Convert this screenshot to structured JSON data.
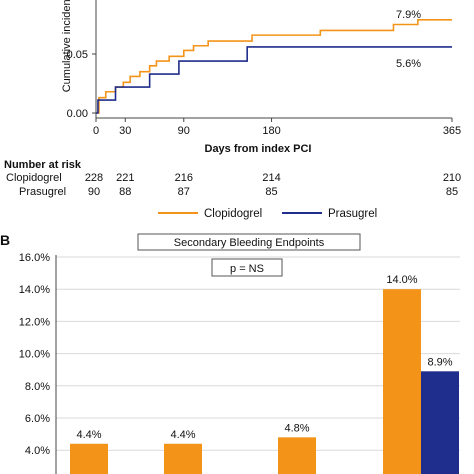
{
  "colors": {
    "clopidogrel": "#F39419",
    "prasugrel": "#1F2D8C"
  },
  "chart_data": [
    {
      "type": "line",
      "ylabel": "Cumulative incidence",
      "xlabel": "Days  from index PCI",
      "xlim": [
        0,
        365
      ],
      "ylim": [
        0,
        0.1
      ],
      "x_ticks": [
        0,
        30,
        90,
        180,
        365
      ],
      "y_ticks": [
        "0.00",
        "0.05"
      ],
      "series": [
        {
          "name": "Clopidogrel",
          "end_label": "7.9%",
          "x": [
            0,
            3,
            10,
            20,
            28,
            35,
            45,
            55,
            62,
            75,
            90,
            100,
            115,
            130,
            160,
            180,
            205,
            230,
            260,
            305,
            330,
            345,
            365
          ],
          "y": [
            0.0,
            0.013,
            0.018,
            0.022,
            0.026,
            0.031,
            0.035,
            0.04,
            0.044,
            0.048,
            0.053,
            0.057,
            0.061,
            0.061,
            0.066,
            0.066,
            0.066,
            0.07,
            0.07,
            0.075,
            0.079,
            0.079,
            0.079
          ]
        },
        {
          "name": "Prasugrel",
          "end_label": "5.6%",
          "x": [
            0,
            2,
            20,
            55,
            85,
            155,
            365
          ],
          "y": [
            0.0,
            0.011,
            0.022,
            0.033,
            0.044,
            0.056,
            0.056
          ]
        }
      ],
      "risk_table": {
        "title": "Number at risk",
        "rows": [
          {
            "label": "Clopidogrel",
            "values": [
              "228",
              "221",
              "216",
              "214",
              "210"
            ]
          },
          {
            "label": "Prasugrel",
            "values": [
              "90",
              "88",
              "87",
              "85",
              "85"
            ]
          }
        ]
      },
      "legend": [
        "Clopidogrel",
        "Prasugrel"
      ]
    },
    {
      "type": "bar",
      "panel_label": "B",
      "title": "Secondary Bleeding Endpoints",
      "annotation": "p = NS",
      "ylim": [
        3.0,
        16.0
      ],
      "y_ticks": [
        "4.0%",
        "6.0%",
        "8.0%",
        "10.0%",
        "12.0%",
        "14.0%",
        "16.0%"
      ],
      "bars": [
        {
          "series": "Clopidogrel",
          "value": 4.4,
          "label": "4.4%"
        },
        {
          "series": "Clopidogrel",
          "value": 4.4,
          "label": "4.4%"
        },
        {
          "series": "Clopidogrel",
          "value": 4.8,
          "label": "4.8%"
        },
        {
          "series": "Clopidogrel",
          "value": 14.0,
          "label": "14.0%"
        },
        {
          "series": "Prasugrel",
          "value": 8.9,
          "label": "8.9%"
        }
      ]
    }
  ]
}
